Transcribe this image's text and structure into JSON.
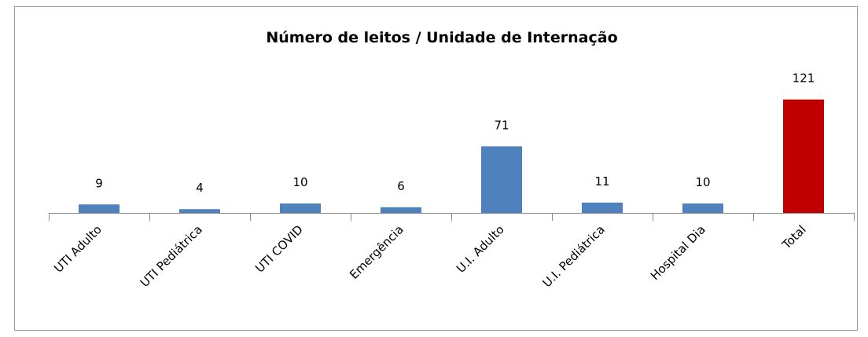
{
  "chart_data": {
    "type": "bar",
    "title": "Número de leitos / Unidade de Internação",
    "categories": [
      "UTI Adulto",
      "UTI Pediátrica",
      "UTI COVID",
      "Emergência",
      "U.I. Adulto",
      "U.I. Pediátrica",
      "Hospital Dia",
      "Total"
    ],
    "values": [
      9,
      4,
      10,
      6,
      71,
      11,
      10,
      121
    ],
    "colors": [
      "#4f81bd",
      "#4f81bd",
      "#4f81bd",
      "#4f81bd",
      "#4f81bd",
      "#4f81bd",
      "#4f81bd",
      "#c00000"
    ],
    "ylim": [
      0,
      140
    ]
  }
}
